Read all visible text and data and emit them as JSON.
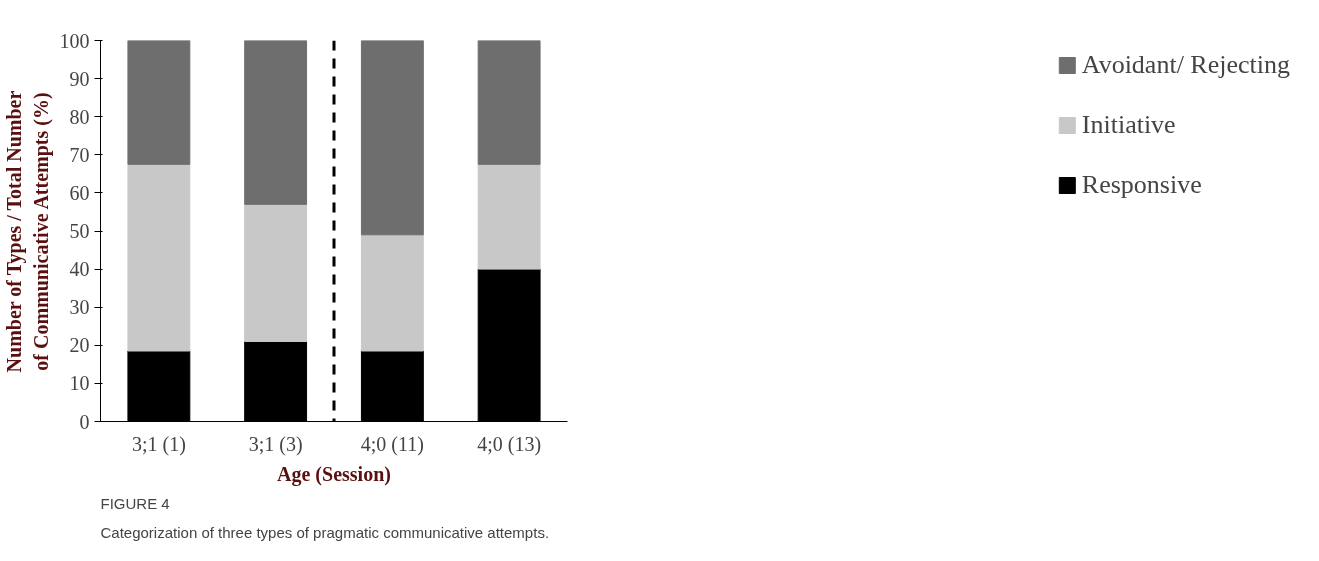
{
  "chart_data": {
    "type": "bar",
    "stacked": true,
    "xlabel": "Age (Session)",
    "ylabel": "Number of Types / Total Number of Communicative Attempts (%)",
    "categories": [
      "3;1 (1)",
      "3;1 (3)",
      "4;0 (11)",
      "4;0 (13)"
    ],
    "series": [
      {
        "name": "Responsive",
        "color": "#000000",
        "values": [
          18.5,
          21,
          18.5,
          40
        ]
      },
      {
        "name": "Initiative",
        "color": "#c8c8c8",
        "values": [
          49,
          36,
          30.5,
          27.5
        ]
      },
      {
        "name": "Avoidant/ Rejecting",
        "color": "#6e6e6e",
        "values": [
          32.5,
          43,
          51,
          32.5
        ]
      }
    ],
    "ylim": [
      0,
      100
    ],
    "yticks": [
      0,
      10,
      20,
      30,
      40,
      50,
      60,
      70,
      80,
      90,
      100
    ],
    "grid": false,
    "legend": "right",
    "annotations": [
      "FIGURE 4",
      "Categorization of three types of pragmatic communicative attempts."
    ]
  }
}
